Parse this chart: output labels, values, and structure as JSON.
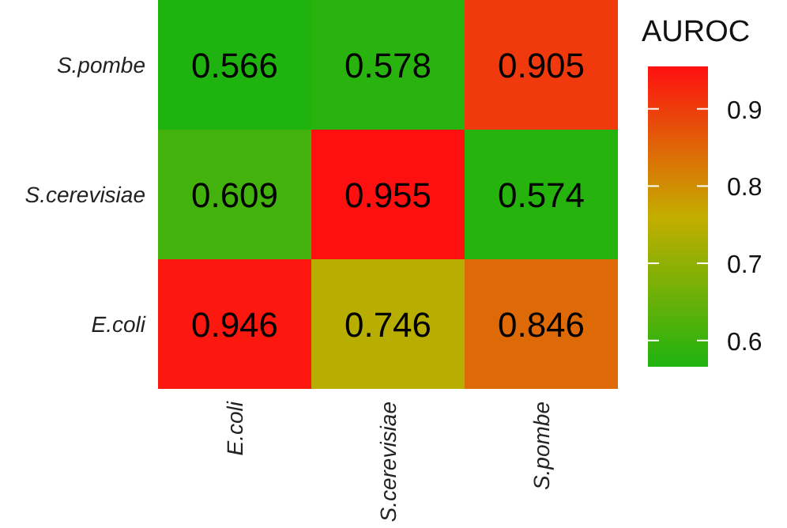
{
  "chart_data": {
    "type": "heatmap",
    "categories": [
      "E.coli",
      "S.cerevisiae",
      "S.pombe"
    ],
    "y_categories": [
      "S.pombe",
      "S.cerevisiae",
      "E.coli"
    ],
    "cells": [
      [
        0.566,
        0.578,
        0.905
      ],
      [
        0.609,
        0.955,
        0.574
      ],
      [
        0.946,
        0.746,
        0.846
      ]
    ],
    "data_labels": true,
    "clabel": "AUROC",
    "clim": [
      0.566,
      0.955
    ],
    "cticks": [
      0.6,
      0.7,
      0.8,
      0.9
    ]
  }
}
